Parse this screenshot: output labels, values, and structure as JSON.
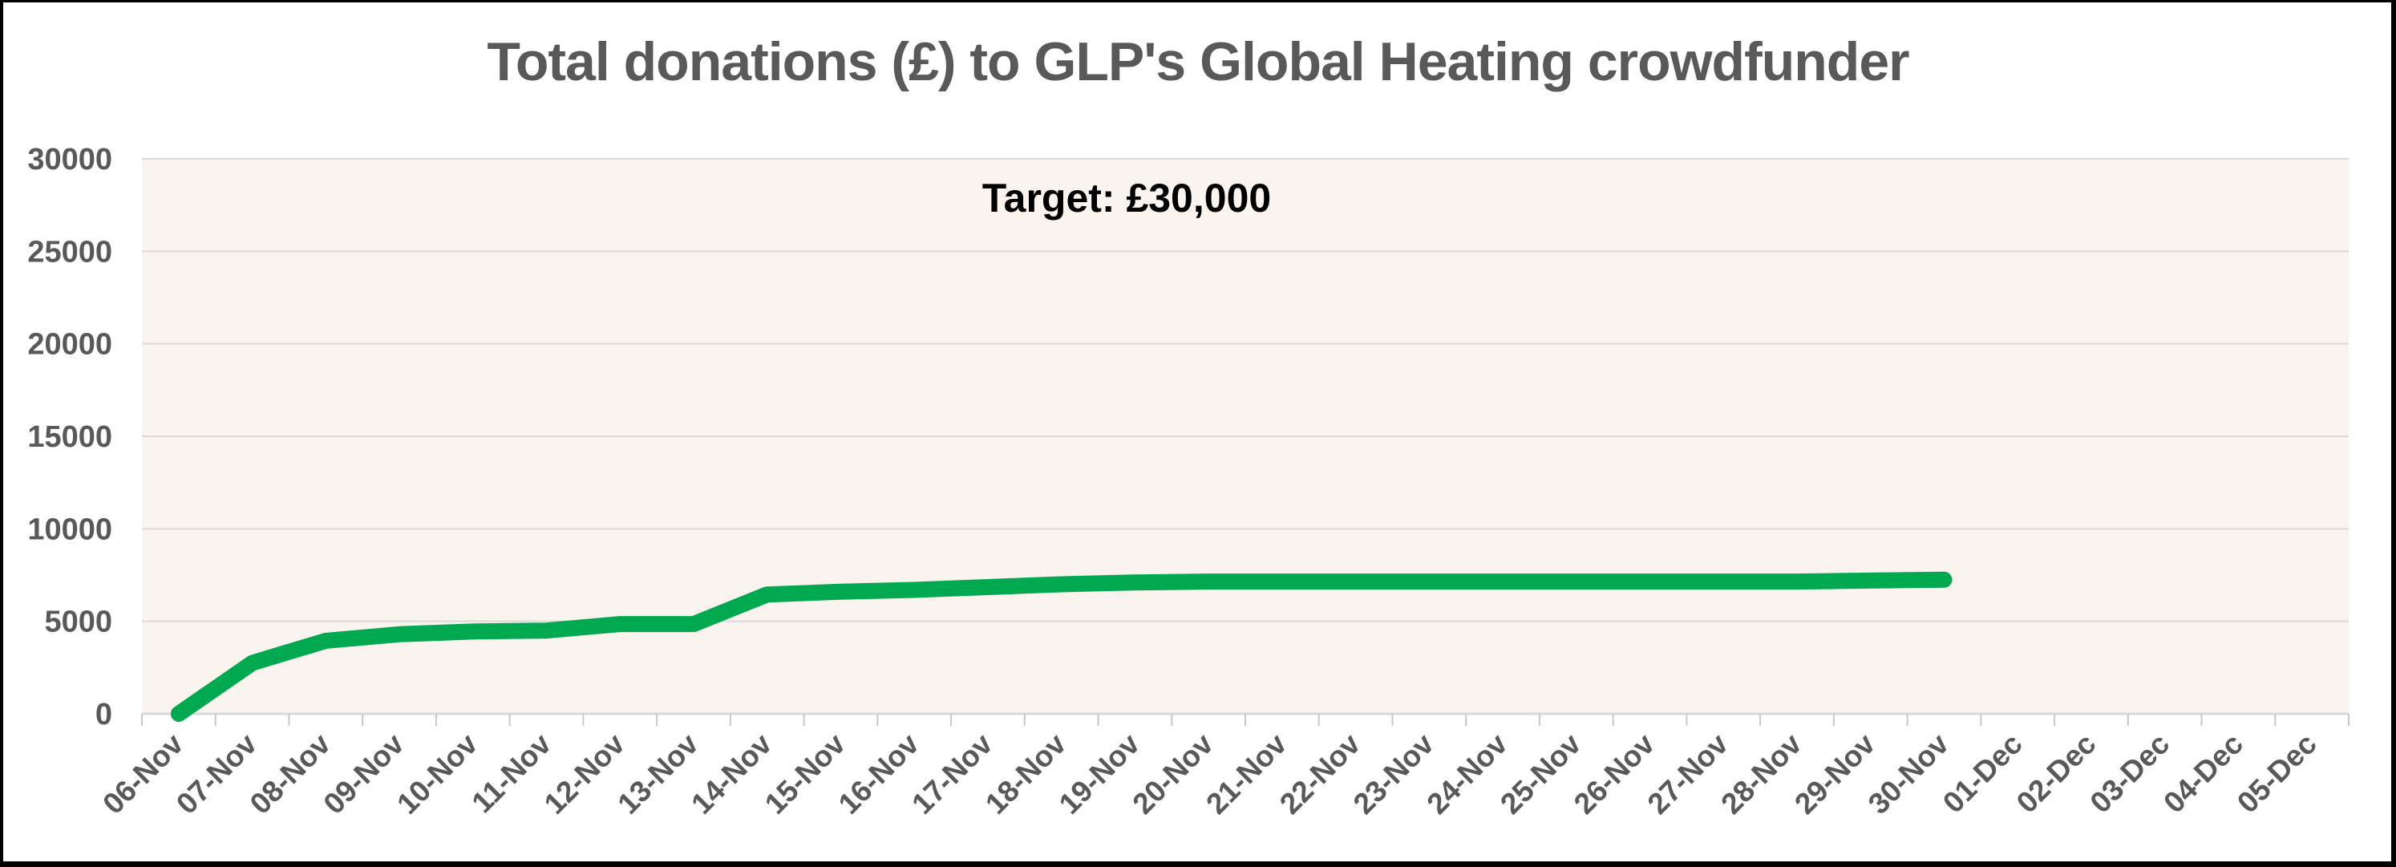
{
  "window": {
    "background": "#ffffff",
    "frame_border_color": "#000000"
  },
  "chart_data": {
    "type": "line",
    "title": "Total donations (£) to GLP's Global Heating crowdfunder",
    "annotation": {
      "text": "Target: £30,000",
      "color": "#000000"
    },
    "series_name": "Total donations (£)",
    "categories": [
      "06-Nov",
      "07-Nov",
      "08-Nov",
      "09-Nov",
      "10-Nov",
      "11-Nov",
      "12-Nov",
      "13-Nov",
      "14-Nov",
      "15-Nov",
      "16-Nov",
      "17-Nov",
      "18-Nov",
      "19-Nov",
      "20-Nov",
      "21-Nov",
      "22-Nov",
      "23-Nov",
      "24-Nov",
      "25-Nov",
      "26-Nov",
      "27-Nov",
      "28-Nov",
      "29-Nov",
      "30-Nov",
      "01-Dec",
      "02-Dec",
      "03-Dec",
      "04-Dec",
      "05-Dec"
    ],
    "values": [
      0,
      2750,
      3950,
      4300,
      4450,
      4500,
      4850,
      4850,
      6450,
      6600,
      6700,
      6850,
      7000,
      7100,
      7150,
      7150,
      7150,
      7150,
      7150,
      7150,
      7150,
      7150,
      7150,
      7200,
      7250,
      null,
      null,
      null,
      null,
      null
    ],
    "ylim": [
      0,
      30000
    ],
    "yticks": [
      0,
      5000,
      10000,
      15000,
      20000,
      25000,
      30000
    ],
    "grid": "horizontal",
    "legend": "none",
    "colors": {
      "line": "#00A84F",
      "plot_background": "#FBF4EE",
      "gridline": "#D9D9D9",
      "axis_line": "#D9D9D9",
      "tick_mark": "#C8C8C8",
      "axis_label": "#595959",
      "title": "#595959"
    }
  }
}
